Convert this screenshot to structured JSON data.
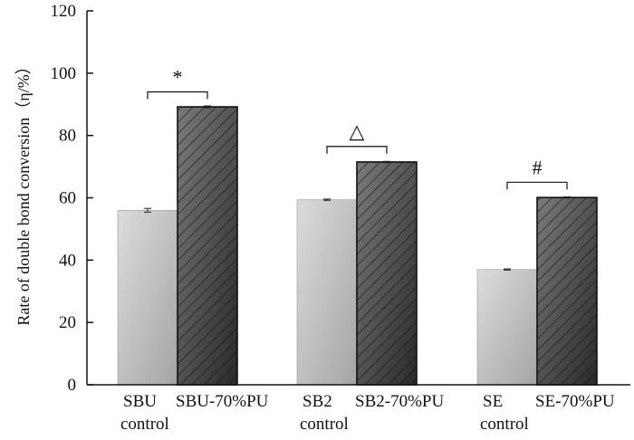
{
  "chart_data": {
    "type": "bar",
    "title": "",
    "xlabel": "",
    "ylabel": "Rate of double bond conversion（η/%）",
    "ylim": [
      0,
      120
    ],
    "yticks": [
      0,
      20,
      40,
      60,
      80,
      100,
      120
    ],
    "grid": false,
    "bars": [
      {
        "label_line1": "SBU",
        "label_line2": "control",
        "value": 56,
        "error": 0.6,
        "style": "light"
      },
      {
        "label_line1": "SBU-70%PU",
        "label_line2": "",
        "value": 89.2,
        "error": 0.3,
        "style": "dark-hatched"
      },
      {
        "label_line1": "SB2",
        "label_line2": "control",
        "value": 59.4,
        "error": 0.2,
        "style": "light"
      },
      {
        "label_line1": "SB2-70%PU",
        "label_line2": "",
        "value": 71.5,
        "error": 0.2,
        "style": "dark-hatched"
      },
      {
        "label_line1": "SE",
        "label_line2": "control",
        "value": 37,
        "error": 0.2,
        "style": "light"
      },
      {
        "label_line1": "SE-70%PU",
        "label_line2": "",
        "value": 60.1,
        "error": 0.2,
        "style": "dark-hatched"
      }
    ],
    "significance": [
      {
        "marker": "*",
        "from_bar": 0,
        "to_bar": 1,
        "level": 94
      },
      {
        "marker": "△",
        "from_bar": 2,
        "to_bar": 3,
        "level": 76.5
      },
      {
        "marker": "#",
        "from_bar": 4,
        "to_bar": 5,
        "level": 65
      }
    ],
    "colors": {
      "light_top": "#d9d9d9",
      "light_bottom": "#a9a9a9",
      "dark_top": "#6a6a6a",
      "dark_bottom": "#2f2f2f",
      "hatch": "#1a1a1a",
      "axis": "#111111"
    }
  }
}
